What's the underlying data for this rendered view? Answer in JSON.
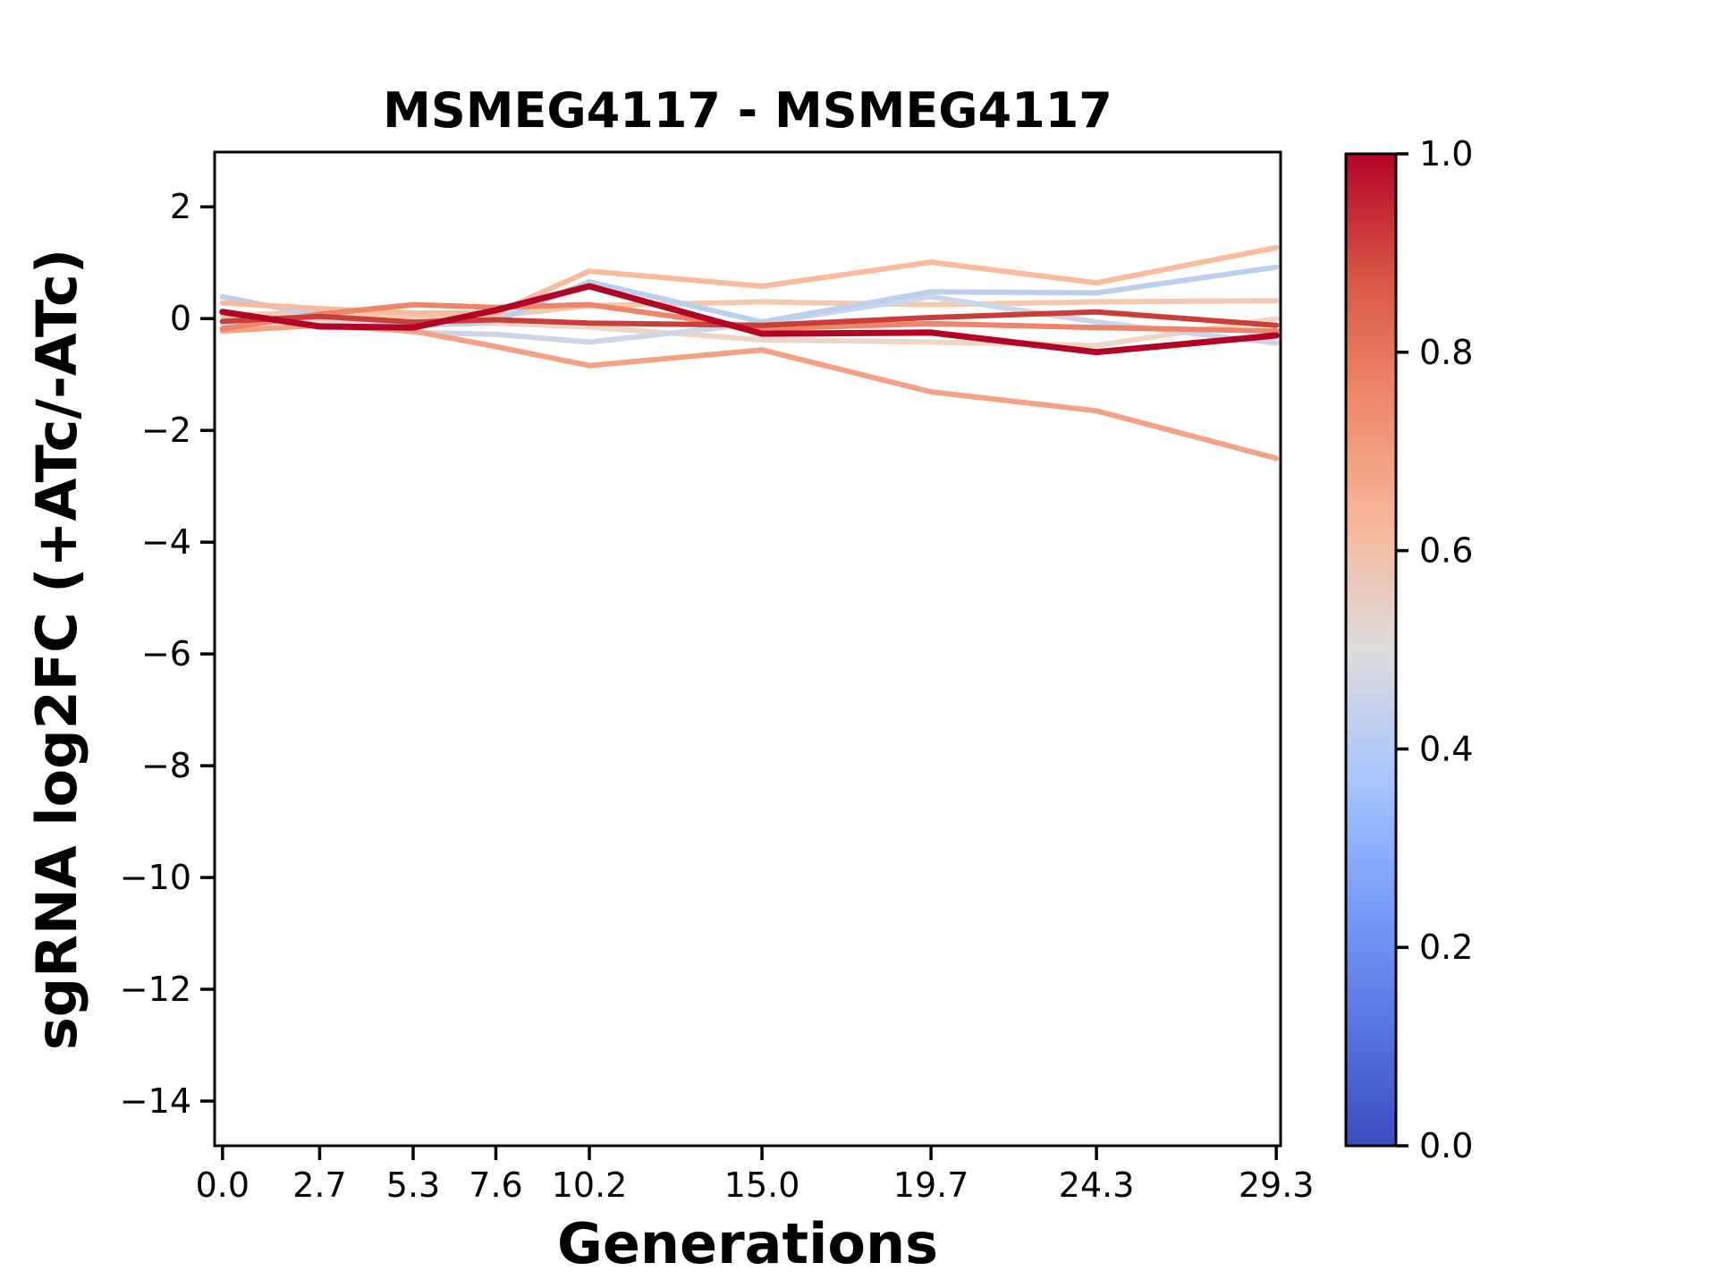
{
  "figure": {
    "background_color": "#ffffff",
    "title": "MSMEG4117 - MSMEG4117"
  },
  "chart_data": {
    "type": "line",
    "title": "MSMEG4117 - MSMEG4117",
    "xlabel": "Generations",
    "ylabel": "sgRNA log2FC (+ATc/-ATc)",
    "x": [
      0.0,
      2.7,
      5.3,
      7.6,
      10.2,
      15.0,
      19.7,
      24.3,
      29.3
    ],
    "xtick_labels": [
      "0.0",
      "2.7",
      "5.3",
      "7.6",
      "10.2",
      "15.0",
      "19.7",
      "24.3",
      "29.3"
    ],
    "yticks": [
      2,
      0,
      -2,
      -4,
      -6,
      -8,
      -10,
      -12,
      -14
    ],
    "ytick_labels": [
      "2",
      "0",
      "−2",
      "−4",
      "−6",
      "−8",
      "−10",
      "−12",
      "−14"
    ],
    "xlim": [
      -0.22,
      29.42
    ],
    "ylim": [
      -14.8,
      2.98
    ],
    "grid": false,
    "legend": "none",
    "series": [
      {
        "colormap_value": 0.54,
        "color": "#eed5c5",
        "width": 6,
        "values": [
          -0.1,
          -0.05,
          -0.12,
          -0.08,
          -0.15,
          -0.38,
          -0.42,
          -0.48,
          0.0
        ]
      },
      {
        "colormap_value": 0.58,
        "color": "#f4c9af",
        "width": 6,
        "values": [
          0.05,
          0.12,
          0.05,
          0.05,
          0.23,
          0.3,
          0.25,
          0.3,
          0.32
        ]
      },
      {
        "colormap_value": 0.45,
        "color": "#ccd5e9",
        "width": 6,
        "values": [
          -0.08,
          0.02,
          -0.25,
          -0.28,
          -0.42,
          -0.08,
          0.39,
          -0.06,
          -0.44
        ]
      },
      {
        "colormap_value": 0.38,
        "color": "#bccfed",
        "width": 6,
        "values": [
          0.39,
          0.05,
          -0.12,
          -0.05,
          0.66,
          -0.06,
          0.48,
          0.46,
          0.92
        ]
      },
      {
        "colormap_value": 0.62,
        "color": "#f7bb9d",
        "width": 6,
        "values": [
          0.28,
          0.18,
          0.1,
          0.1,
          0.85,
          0.58,
          1.01,
          0.64,
          1.27
        ]
      },
      {
        "colormap_value": 0.7,
        "color": "#f5a183",
        "width": 6,
        "values": [
          -0.22,
          -0.12,
          -0.22,
          -0.5,
          -0.84,
          -0.56,
          -1.31,
          -1.65,
          -2.5
        ]
      },
      {
        "colormap_value": 0.78,
        "color": "#ee8468",
        "width": 6,
        "values": [
          -0.18,
          0.08,
          0.25,
          0.2,
          0.25,
          -0.18,
          -0.09,
          -0.16,
          -0.22
        ]
      },
      {
        "colormap_value": 0.9,
        "color": "#cb3e38",
        "width": 6,
        "values": [
          -0.05,
          0.04,
          -0.06,
          -0.02,
          -0.08,
          -0.12,
          0.02,
          0.12,
          -0.12
        ]
      },
      {
        "colormap_value": 1.0,
        "color": "#b40426",
        "width": 7,
        "values": [
          0.12,
          -0.14,
          -0.16,
          0.15,
          0.58,
          -0.27,
          -0.25,
          -0.6,
          -0.3
        ]
      }
    ],
    "colorbar": {
      "ticks": [
        0.0,
        0.2,
        0.4,
        0.6,
        0.8,
        1.0
      ],
      "tick_labels": [
        "0.0",
        "0.2",
        "0.4",
        "0.6",
        "0.8",
        "1.0"
      ],
      "range": [
        0.0,
        1.0
      ],
      "colormap": "coolwarm",
      "stops": [
        {
          "t": 0.0,
          "color": "#3b4cc0"
        },
        {
          "t": 0.125,
          "color": "#5977e3"
        },
        {
          "t": 0.25,
          "color": "#7b9ff9"
        },
        {
          "t": 0.375,
          "color": "#aac7fd"
        },
        {
          "t": 0.5,
          "color": "#dddcdb"
        },
        {
          "t": 0.625,
          "color": "#f7b89c"
        },
        {
          "t": 0.75,
          "color": "#ee8a6b"
        },
        {
          "t": 0.875,
          "color": "#d85646"
        },
        {
          "t": 1.0,
          "color": "#b40426"
        }
      ]
    }
  }
}
